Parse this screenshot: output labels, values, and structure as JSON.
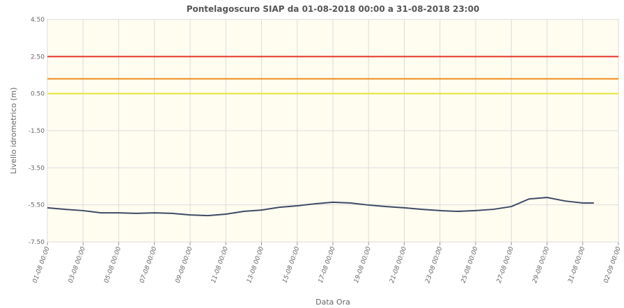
{
  "chart_data": {
    "type": "line",
    "title": "Pontelagoscuro SIAP da 01-08-2018 00:00 a 31-08-2018 23:00",
    "x_label": "Data Ora",
    "y_label": "Livello idrometrico (m)",
    "x": [
      "01-08 00:00",
      "02-08 00:00",
      "03-08 00:00",
      "04-08 00:00",
      "05-08 00:00",
      "06-08 00:00",
      "07-08 00:00",
      "08-08 00:00",
      "09-08 00:00",
      "10-08 00:00",
      "11-08 00:00",
      "12-08 00:00",
      "13-08 00:00",
      "14-08 00:00",
      "15-08 00:00",
      "16-08 00:00",
      "17-08 00:00",
      "18-08 00:00",
      "19-08 00:00",
      "20-08 00:00",
      "21-08 00:00",
      "22-08 00:00",
      "23-08 00:00",
      "24-08 00:00",
      "25-08 00:00",
      "26-08 00:00",
      "27-08 00:00",
      "28-08 00:00",
      "29-08 00:00",
      "30-08 00:00",
      "31-08 00:00",
      "31-08 15:00"
    ],
    "series": [
      {
        "color": "#3d4a66",
        "values": [
          -5.66,
          -5.74,
          -5.81,
          -5.93,
          -5.93,
          -5.96,
          -5.93,
          -5.96,
          -6.04,
          -6.08,
          -6.0,
          -5.85,
          -5.78,
          -5.63,
          -5.55,
          -5.44,
          -5.36,
          -5.4,
          -5.51,
          -5.59,
          -5.66,
          -5.74,
          -5.81,
          -5.85,
          -5.81,
          -5.74,
          -5.59,
          -5.18,
          -5.1,
          -5.29,
          -5.4,
          -5.4
        ]
      }
    ],
    "thresholds": [
      {
        "value": 2.5,
        "color": "#e53228"
      },
      {
        "value": 1.3,
        "color": "#ef8a1c"
      },
      {
        "value": 0.5,
        "color": "#e3e636"
      }
    ],
    "xlim": [
      "01-08 00:00",
      "02-09 00:00"
    ],
    "xticks": [
      "01-08 00:00",
      "03-08 00:00",
      "05-08 00:00",
      "07-08 00:00",
      "09-08 00:00",
      "11-08 00:00",
      "13-08 00:00",
      "15-08 00:00",
      "17-08 00:00",
      "19-08 00:00",
      "21-08 00:00",
      "23-08 00:00",
      "25-08 00:00",
      "27-08 00:00",
      "29-08 00:00",
      "31-08 00:00",
      "02-09 00:00"
    ],
    "ylim": [
      -7.5,
      4.5
    ],
    "yticks": [
      {
        "value": -7.5,
        "label": "-7.50"
      },
      {
        "value": -5.5,
        "label": "-5.50"
      },
      {
        "value": -3.5,
        "label": "-3.50"
      },
      {
        "value": -1.5,
        "label": "-1.50"
      },
      {
        "value": 0.5,
        "label": "0.50"
      },
      {
        "value": 2.5,
        "label": "2.50"
      },
      {
        "value": 4.5,
        "label": "4.50"
      }
    ],
    "grid": true
  }
}
